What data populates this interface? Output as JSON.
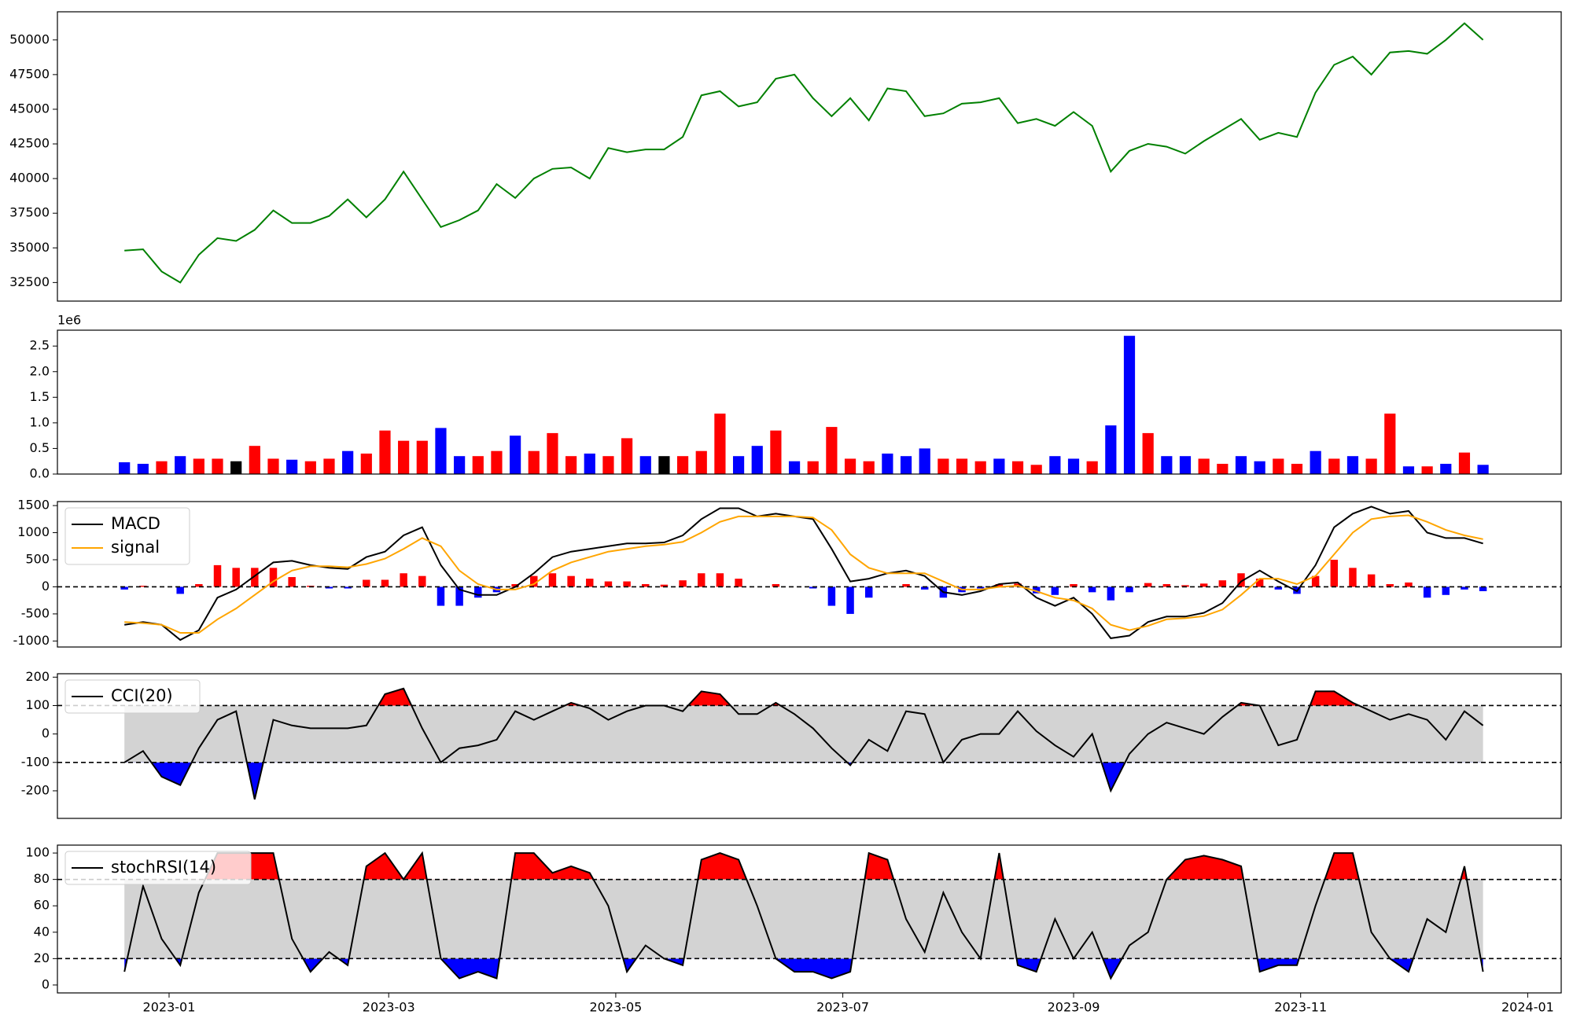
{
  "chart_data": [
    {
      "type": "line",
      "color": "green",
      "x": [
        -12,
        -7,
        -2,
        3,
        8,
        13,
        18,
        23,
        28,
        33,
        38,
        43,
        48,
        53,
        58,
        63,
        68,
        73,
        78,
        83,
        88,
        93,
        98,
        103,
        108,
        113,
        118,
        123,
        128,
        133,
        138,
        143,
        148,
        153,
        158,
        163,
        168,
        173,
        178,
        183,
        188,
        193,
        198,
        203,
        208,
        213,
        218,
        223,
        228,
        233,
        238,
        243,
        248,
        253,
        258,
        263,
        268,
        273,
        278,
        283,
        288,
        293,
        298,
        303,
        308,
        313,
        318,
        323,
        328,
        333,
        338,
        343,
        348,
        353
      ],
      "xlim": [
        -30,
        374
      ],
      "values": [
        34800,
        34900,
        33300,
        32500,
        34500,
        35700,
        35500,
        36300,
        37700,
        36800,
        36800,
        37300,
        38500,
        37200,
        38500,
        40500,
        38500,
        36500,
        37000,
        37700,
        39600,
        38600,
        40000,
        40700,
        40800,
        40000,
        42200,
        41900,
        42100,
        42100,
        43000,
        46000,
        46300,
        45200,
        45500,
        47200,
        47500,
        45800,
        44500,
        45800,
        44200,
        46500,
        46300,
        44500,
        44700,
        45400,
        45500,
        45800,
        44000,
        44300,
        43800,
        44800,
        43800,
        40500,
        42000,
        42500,
        42300,
        41800,
        42700,
        43500,
        44300,
        42800,
        43300,
        43000,
        46200,
        48200,
        48800,
        47500,
        49100,
        49200,
        49000,
        50000,
        51200,
        50000
      ],
      "ylim": [
        31160,
        52030
      ],
      "yticks": [
        32500,
        35000,
        37500,
        40000,
        42500,
        45000,
        47500,
        50000
      ]
    },
    {
      "type": "bar",
      "offset_label": "1e6",
      "values": [
        230000,
        200000,
        250000,
        350000,
        300000,
        300000,
        250000,
        550000,
        300000,
        280000,
        250000,
        300000,
        450000,
        400000,
        850000,
        650000,
        650000,
        900000,
        350000,
        350000,
        450000,
        750000,
        450000,
        800000,
        350000,
        400000,
        350000,
        700000,
        350000,
        350000,
        350000,
        450000,
        1180000,
        350000,
        550000,
        850000,
        250000,
        250000,
        920000,
        300000,
        250000,
        400000,
        350000,
        500000,
        300000,
        300000,
        250000,
        300000,
        250000,
        180000,
        350000,
        300000,
        250000,
        950000,
        2700000,
        800000,
        350000,
        350000,
        300000,
        200000,
        350000,
        250000,
        300000,
        200000,
        450000,
        300000,
        350000,
        300000,
        1180000,
        150000,
        150000,
        200000,
        420000,
        180000
      ],
      "colors": [
        "blue",
        "blue",
        "red",
        "blue",
        "red",
        "red",
        "black",
        "red",
        "red",
        "blue",
        "red",
        "red",
        "blue",
        "red",
        "red",
        "red",
        "red",
        "blue",
        "blue",
        "red",
        "red",
        "blue",
        "red",
        "red",
        "red",
        "blue",
        "red",
        "red",
        "blue",
        "black",
        "red",
        "red",
        "red",
        "blue",
        "blue",
        "red",
        "blue",
        "red",
        "red",
        "red",
        "red",
        "blue",
        "blue",
        "blue",
        "red",
        "red",
        "red",
        "blue",
        "red",
        "red",
        "blue",
        "blue",
        "red",
        "blue",
        "blue",
        "red",
        "blue",
        "blue",
        "red",
        "red",
        "blue",
        "blue",
        "red",
        "red",
        "blue",
        "red",
        "blue",
        "red",
        "red",
        "blue",
        "red",
        "blue",
        "red",
        "blue"
      ],
      "ylim": [
        0,
        2810000
      ],
      "yticks": [
        {
          "value": 0,
          "label": "0.0"
        },
        {
          "value": 500000,
          "label": "0.5"
        },
        {
          "value": 1000000,
          "label": "1.0"
        },
        {
          "value": 1500000,
          "label": "1.5"
        },
        {
          "value": 2000000,
          "label": "2.0"
        },
        {
          "value": 2500000,
          "label": "2.5"
        }
      ]
    },
    {
      "type": "macd",
      "legend": "upper left",
      "reference_lines": [
        0
      ],
      "series": [
        {
          "name": "MACD",
          "color": "black",
          "values": [
            -700,
            -650,
            -700,
            -980,
            -800,
            -200,
            -50,
            200,
            450,
            480,
            400,
            350,
            330,
            550,
            650,
            950,
            1100,
            400,
            -50,
            -150,
            -150,
            0,
            250,
            550,
            650,
            700,
            750,
            800,
            800,
            820,
            950,
            1250,
            1450,
            1450,
            1300,
            1350,
            1300,
            1250,
            700,
            100,
            150,
            250,
            300,
            200,
            -100,
            -150,
            -80,
            50,
            80,
            -200,
            -350,
            -200,
            -500,
            -950,
            -900,
            -650,
            -550,
            -550,
            -480,
            -300,
            100,
            300,
            100,
            -80,
            400,
            1100,
            1350,
            1480,
            1350,
            1400,
            1000,
            900,
            900,
            800
          ]
        },
        {
          "name": "signal",
          "color": "orange",
          "values": [
            -650,
            -670,
            -700,
            -850,
            -850,
            -600,
            -400,
            -150,
            100,
            300,
            380,
            380,
            360,
            420,
            520,
            700,
            900,
            750,
            300,
            50,
            -50,
            -50,
            50,
            300,
            450,
            550,
            650,
            700,
            750,
            780,
            830,
            1000,
            1200,
            1300,
            1300,
            1300,
            1300,
            1280,
            1050,
            600,
            350,
            250,
            250,
            250,
            100,
            -50,
            -50,
            0,
            20,
            -80,
            -200,
            -250,
            -400,
            -700,
            -800,
            -720,
            -600,
            -580,
            -540,
            -420,
            -150,
            150,
            150,
            50,
            200,
            600,
            1000,
            1250,
            1300,
            1320,
            1200,
            1050,
            950,
            880
          ]
        }
      ],
      "histogram": {
        "up_color": "red",
        "down_color": "blue",
        "values": [
          -50,
          20,
          0,
          -130,
          50,
          400,
          350,
          350,
          350,
          180,
          20,
          -30,
          -30,
          130,
          130,
          250,
          200,
          -350,
          -350,
          -200,
          -100,
          50,
          200,
          250,
          200,
          150,
          100,
          100,
          50,
          40,
          120,
          250,
          250,
          150,
          0,
          50,
          0,
          -30,
          -350,
          -500,
          -200,
          0,
          50,
          -50,
          -200,
          -100,
          -30,
          50,
          60,
          -120,
          -150,
          50,
          -100,
          -250,
          -100,
          70,
          50,
          30,
          60,
          120,
          250,
          150,
          -50,
          -130,
          200,
          500,
          350,
          230,
          50,
          80,
          -200,
          -150,
          -50,
          -80
        ]
      },
      "ylim": [
        -1111,
        1574
      ],
      "yticks": [
        -1000,
        -500,
        0,
        500,
        1000,
        1500
      ]
    },
    {
      "type": "oscillator",
      "legend": "upper left",
      "bands": [
        -100,
        100
      ],
      "fill_colors": {
        "inside": "lightgray",
        "above": "red",
        "below": "blue"
      },
      "series": [
        {
          "name": "CCI(20)",
          "color": "black",
          "values": [
            -100,
            -60,
            -150,
            -180,
            -50,
            50,
            80,
            -230,
            50,
            30,
            20,
            20,
            20,
            30,
            140,
            160,
            20,
            -100,
            -50,
            -40,
            -20,
            80,
            50,
            80,
            110,
            90,
            50,
            80,
            100,
            100,
            80,
            150,
            140,
            70,
            70,
            110,
            70,
            20,
            -50,
            -110,
            -20,
            -60,
            80,
            70,
            -100,
            -20,
            0,
            0,
            80,
            10,
            -40,
            -80,
            0,
            -200,
            -70,
            0,
            40,
            20,
            0,
            60,
            110,
            100,
            -40,
            -20,
            150,
            150,
            110,
            80,
            50,
            70,
            50,
            -20,
            80,
            30
          ]
        }
      ],
      "ylim": [
        -297,
        212
      ],
      "yticks": [
        -200,
        -100,
        0,
        100,
        200
      ]
    },
    {
      "type": "oscillator",
      "legend": "upper left",
      "bands": [
        20,
        80
      ],
      "fill_colors": {
        "inside": "lightgray",
        "above": "red",
        "below": "blue"
      },
      "series": [
        {
          "name": "stochRSI(14)",
          "color": "black",
          "values": [
            10,
            75,
            35,
            15,
            70,
            100,
            100,
            100,
            100,
            35,
            10,
            25,
            15,
            90,
            100,
            80,
            100,
            20,
            5,
            10,
            5,
            100,
            100,
            85,
            90,
            85,
            60,
            10,
            30,
            20,
            15,
            95,
            100,
            95,
            60,
            20,
            10,
            10,
            5,
            10,
            100,
            95,
            50,
            25,
            70,
            40,
            20,
            100,
            15,
            10,
            50,
            20,
            40,
            5,
            30,
            40,
            80,
            95,
            98,
            95,
            90,
            10,
            15,
            15,
            60,
            100,
            100,
            40,
            20,
            10,
            50,
            40,
            90,
            10
          ]
        }
      ],
      "ylim": [
        -6,
        106
      ],
      "yticks": [
        0,
        20,
        40,
        60,
        80,
        100
      ],
      "xticks": [
        {
          "value": 0,
          "label": "2023-01"
        },
        {
          "value": 59,
          "label": "2023-03"
        },
        {
          "value": 120,
          "label": "2023-05"
        },
        {
          "value": 181,
          "label": "2023-07"
        },
        {
          "value": 243,
          "label": "2023-09"
        },
        {
          "value": 304,
          "label": "2023-11"
        },
        {
          "value": 365,
          "label": "2024-01"
        }
      ]
    }
  ]
}
